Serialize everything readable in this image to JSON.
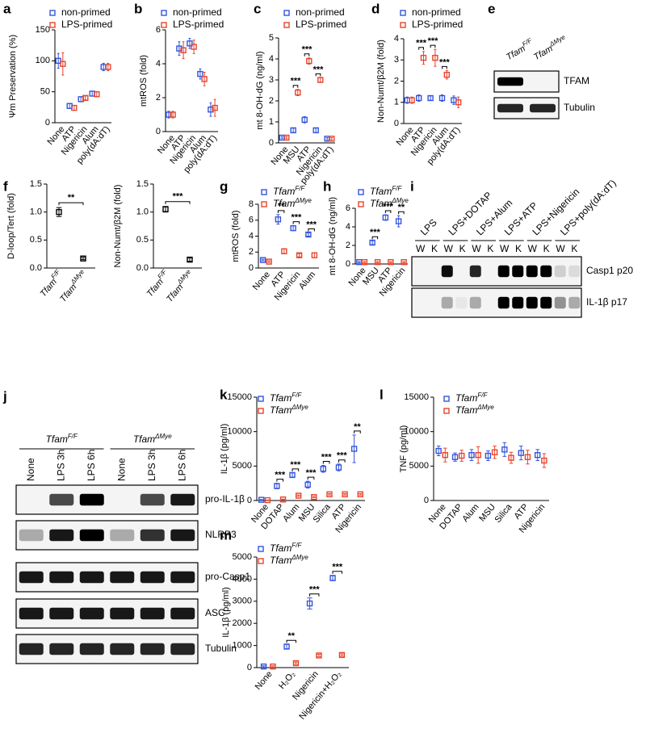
{
  "chart_data": [
    {
      "type": "dot",
      "label": "a",
      "ylabel": "Ψm Preservation (%)",
      "legend": "upper left",
      "categories": [
        "None",
        "ATP",
        "Nigericin",
        "Alum",
        "poly(dA:dT)"
      ],
      "series": [
        {
          "name": "non-primed",
          "color": "#3355dd",
          "values": [
            100,
            27,
            38,
            47,
            90
          ],
          "errors": [
            12,
            4,
            4,
            4,
            6
          ]
        },
        {
          "name": "LPS-primed",
          "color": "#e8442c",
          "values": [
            95,
            24,
            40,
            46,
            90
          ],
          "errors": [
            18,
            4,
            3,
            4,
            6
          ]
        }
      ],
      "ylim": [
        0,
        150
      ],
      "yticks": [
        0,
        50,
        100,
        150
      ]
    },
    {
      "type": "dot",
      "label": "b",
      "ylabel": "mtROS (fold)",
      "legend": "upper left",
      "categories": [
        "None",
        "ATP",
        "Nigericin",
        "Alum",
        "poly(dA:dT)"
      ],
      "series": [
        {
          "name": "non-primed",
          "color": "#3355dd",
          "values": [
            1.0,
            4.9,
            5.2,
            3.4,
            1.3
          ],
          "errors": [
            0.2,
            0.4,
            0.3,
            0.3,
            0.4
          ]
        },
        {
          "name": "LPS-primed",
          "color": "#e8442c",
          "values": [
            1.0,
            4.8,
            5.0,
            3.1,
            1.4
          ],
          "errors": [
            0.2,
            0.5,
            0.4,
            0.4,
            0.5
          ]
        }
      ],
      "ylim": [
        0,
        6
      ],
      "yticks": [
        0,
        2,
        4,
        6
      ]
    },
    {
      "type": "dot",
      "label": "c",
      "ylabel": "mt 8-OH-dG (ng/ml)",
      "legend": "upper left",
      "categories": [
        "None",
        "MSU",
        "ATP",
        "Nigericin",
        "poly(dA:dT)"
      ],
      "series": [
        {
          "name": "non-primed",
          "color": "#3355dd",
          "values": [
            0.25,
            0.6,
            1.1,
            0.6,
            0.2
          ],
          "errors": [
            0.05,
            0.1,
            0.15,
            0.1,
            0.05
          ]
        },
        {
          "name": "LPS-primed",
          "color": "#e8442c",
          "values": [
            0.25,
            2.4,
            3.9,
            3.0,
            0.2
          ],
          "errors": [
            0.05,
            0.15,
            0.15,
            0.1,
            0.05
          ]
        }
      ],
      "significance": [
        null,
        "***",
        "***",
        "***",
        null
      ],
      "ylim": [
        0,
        5
      ],
      "yticks": [
        0,
        1,
        2,
        3,
        4,
        5
      ]
    },
    {
      "type": "dot",
      "label": "d",
      "ylabel": "Non-Numt/β2M (fold)",
      "legend": "upper left",
      "categories": [
        "None",
        "ATP",
        "Nigericin",
        "Alum",
        "poly(dA:dT)"
      ],
      "series": [
        {
          "name": "non-primed",
          "color": "#3355dd",
          "values": [
            1.1,
            1.2,
            1.2,
            1.2,
            1.1
          ],
          "errors": [
            0.15,
            0.15,
            0.1,
            0.15,
            0.2
          ]
        },
        {
          "name": "LPS-primed",
          "color": "#e8442c",
          "values": [
            1.1,
            3.1,
            3.1,
            2.3,
            1.0
          ],
          "errors": [
            0.15,
            0.3,
            0.4,
            0.2,
            0.25
          ]
        }
      ],
      "significance": [
        null,
        "***",
        "***",
        "***",
        null
      ],
      "ylim": [
        0,
        4
      ],
      "yticks": [
        0,
        1,
        2,
        3,
        4
      ]
    },
    {
      "type": "dot",
      "label": "f",
      "ylabel": "D-loop/Tert (fold)",
      "categories": [
        "Tfam",
        "Tfam"
      ],
      "category_sups": [
        "F/F",
        "ΔMye"
      ],
      "series": [
        {
          "color": "#000000",
          "values": [
            1.0,
            0.17
          ],
          "errors": [
            0.08,
            0.02
          ]
        }
      ],
      "significance": "**",
      "ylim": [
        0,
        1.5
      ],
      "yticks": [
        {
          "value": 0,
          "label": "0.0"
        },
        0.5,
        {
          "value": 1,
          "label": "1.0"
        },
        1.5
      ]
    },
    {
      "type": "dot",
      "ylabel": "Non-Numt/β2M (fold)",
      "categories": [
        "Tfam",
        "Tfam"
      ],
      "category_sups": [
        "F/F",
        "ΔMye"
      ],
      "series": [
        {
          "color": "#000000",
          "values": [
            1.05,
            0.15
          ],
          "errors": [
            0.05,
            0.03
          ]
        }
      ],
      "significance": "***",
      "ylim": [
        0,
        1.5
      ],
      "yticks": [
        {
          "value": 0,
          "label": "0.0"
        },
        0.5,
        {
          "value": 1,
          "label": "1.0"
        },
        1.5
      ]
    },
    {
      "type": "dot",
      "label": "g",
      "ylabel": "mtROS (fold)",
      "legend": "upper left",
      "categories": [
        "None",
        "ATP",
        "Nigericin",
        "Alum"
      ],
      "series": [
        {
          "name": "Tfam",
          "name_sup": "F/F",
          "color": "#3355dd",
          "values": [
            1.0,
            6.1,
            5.0,
            4.2
          ],
          "errors": [
            0.1,
            0.6,
            0.3,
            0.2
          ]
        },
        {
          "name": "Tfam",
          "name_sup": "ΔMye",
          "color": "#e8442c",
          "values": [
            0.8,
            2.1,
            1.6,
            1.6
          ],
          "errors": [
            0.1,
            0.3,
            0.2,
            0.3
          ]
        }
      ],
      "significance": [
        null,
        "**",
        "***",
        "***"
      ],
      "ylim": [
        0,
        8
      ],
      "yticks": [
        0,
        2,
        4,
        6,
        8
      ]
    },
    {
      "type": "dot",
      "label": "h",
      "ylabel": "mt 8-OH-dG (ng/ml)",
      "legend": "upper left",
      "categories": [
        "None",
        "MSU",
        "ATP",
        "Nigericin"
      ],
      "series": [
        {
          "name": "Tfam",
          "name_sup": "F/F",
          "color": "#3355dd",
          "values": [
            0.2,
            2.3,
            5.0,
            4.6
          ],
          "errors": [
            0.05,
            0.2,
            0.3,
            0.6
          ]
        },
        {
          "name": "Tfam",
          "name_sup": "ΔMye",
          "color": "#e8442c",
          "values": [
            0.2,
            0.2,
            0.2,
            0.2
          ],
          "errors": [
            0.05,
            0.05,
            0.05,
            0.05
          ]
        }
      ],
      "significance": [
        null,
        "***",
        "***",
        "**"
      ],
      "ylim": [
        0,
        6
      ],
      "yticks": [
        0,
        2,
        4,
        6
      ]
    },
    {
      "type": "dot",
      "label": "k",
      "ylabel": "IL-1β (pg/ml)",
      "legend": "upper left",
      "categories": [
        "None",
        "DOTAP",
        "Alum",
        "MSU",
        "Silica",
        "ATP",
        "Nigericin"
      ],
      "series": [
        {
          "name": "Tfam",
          "name_sup": "F/F",
          "color": "#3355dd",
          "values": [
            100,
            2100,
            3700,
            2300,
            4600,
            4800,
            7500
          ],
          "errors": [
            50,
            400,
            300,
            500,
            500,
            500,
            2000
          ]
        },
        {
          "name": "Tfam",
          "name_sup": "ΔMye",
          "color": "#e8442c",
          "values": [
            50,
            150,
            700,
            500,
            900,
            900,
            900
          ],
          "errors": [
            30,
            50,
            100,
            100,
            100,
            100,
            100
          ]
        }
      ],
      "significance": [
        null,
        "***",
        "***",
        "***",
        "***",
        "***",
        "**"
      ],
      "ylim": [
        0,
        15000
      ],
      "yticks": [
        0,
        5000,
        10000,
        15000
      ]
    },
    {
      "type": "dot",
      "label": "l",
      "ylabel": "TNF (pg/ml)",
      "legend": "upper left",
      "categories": [
        "None",
        "DOTAP",
        "Alum",
        "MSU",
        "Silica",
        "ATP",
        "Nigericin"
      ],
      "series": [
        {
          "name": "Tfam",
          "name_sup": "F/F",
          "color": "#3355dd",
          "values": [
            7200,
            6300,
            6600,
            6500,
            7400,
            6900,
            6600
          ],
          "errors": [
            700,
            600,
            800,
            700,
            1000,
            1000,
            800
          ]
        },
        {
          "name": "Tfam",
          "name_sup": "ΔMye",
          "color": "#e8442c",
          "values": [
            6600,
            6500,
            6600,
            7000,
            6200,
            6300,
            5800
          ],
          "errors": [
            1000,
            800,
            1200,
            900,
            800,
            1000,
            1000
          ]
        }
      ],
      "ylim": [
        0,
        15000
      ],
      "yticks": [
        0,
        5000,
        10000,
        15000
      ]
    },
    {
      "type": "dot",
      "label": "m",
      "ylabel": "IL-1β (pg/ml)",
      "legend": "upper left",
      "categories": [
        "None",
        "H₂O₂",
        "Nigericin",
        "Nigericin+H₂O₂"
      ],
      "series": [
        {
          "name": "Tfam",
          "name_sup": "F/F",
          "color": "#3355dd",
          "values": [
            50,
            950,
            2900,
            4050
          ],
          "errors": [
            30,
            100,
            250,
            120
          ]
        },
        {
          "name": "Tfam",
          "name_sup": "ΔMye",
          "color": "#e8442c",
          "values": [
            50,
            200,
            550,
            570
          ],
          "errors": [
            30,
            50,
            50,
            50
          ]
        }
      ],
      "significance": [
        null,
        "**",
        "***",
        "***"
      ],
      "ylim": [
        0,
        5000
      ],
      "yticks": [
        0,
        1000,
        2000,
        3000,
        4000,
        5000
      ]
    }
  ],
  "blots": [
    {
      "label": "e",
      "lanes": [
        {
          "name": "Tfam",
          "sup": "F/F"
        },
        {
          "name": "Tfam",
          "sup": "ΔMye"
        }
      ],
      "bands": [
        "TFAM",
        "Tubulin"
      ]
    },
    {
      "label": "i",
      "lanes": [
        "LPS",
        "LPS+DOTAP",
        "LPS+Alum",
        "LPS+ATP",
        "LPS+Nigericin",
        "LPS+poly(dA:dT)"
      ],
      "sublanes": [
        "W",
        "K"
      ],
      "bands": [
        "Casp1 p20",
        "IL-1β p17"
      ]
    },
    {
      "label": "j",
      "groups": [
        {
          "name": "Tfam",
          "sup": "F/F"
        },
        {
          "name": "Tfam",
          "sup": "ΔMye"
        }
      ],
      "lanes": [
        "None",
        "LPS 3h",
        "LPS 6h"
      ],
      "bands": [
        "pro-IL-1β",
        "NLRP3",
        "pro-Casp1",
        "ASC",
        "Tubulin"
      ]
    }
  ]
}
